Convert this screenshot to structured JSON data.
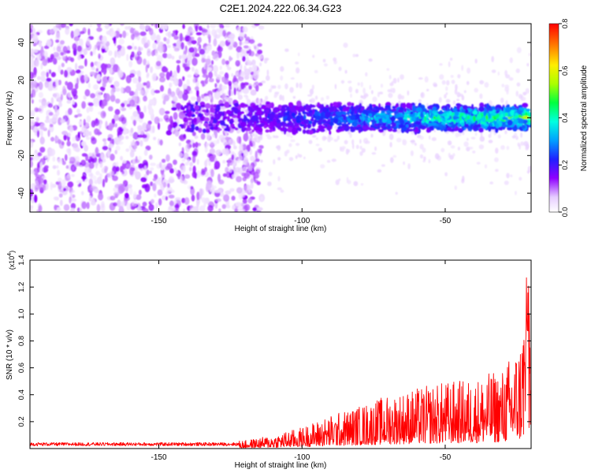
{
  "title": "C2E1.2024.222.06.34.G23",
  "chart_data": [
    {
      "type": "heatmap",
      "xlabel": "Height of straight line (km)",
      "ylabel": "Frequency (Hz)",
      "xlim": [
        -195,
        -20
      ],
      "ylim": [
        -50,
        50
      ],
      "x_ticks": [
        -150,
        -100,
        -50
      ],
      "x_tick_labels": [
        "-150",
        "-100",
        "-50"
      ],
      "y_ticks": [
        -40,
        -20,
        0,
        20,
        40
      ],
      "y_tick_labels": [
        "-40",
        "-20",
        "0",
        "20",
        "40"
      ],
      "colorbar": {
        "label": "Normalized spectral amplitude",
        "range": [
          0,
          0.8
        ],
        "ticks": [
          0,
          0.2,
          0.4,
          0.6,
          0.8
        ],
        "tick_labels": [
          "0.0",
          "0.2",
          "0.4",
          "0.6",
          "0.8"
        ],
        "colormap": "rainbow (white/violet to red)"
      },
      "features": [
        {
          "region": "noise",
          "x_range": [
            -195,
            -120
          ],
          "y_range": [
            -50,
            50
          ],
          "amplitude": 0.08
        },
        {
          "region": "signal band",
          "x_range": [
            -145,
            -20
          ],
          "center_frequency_hz": 0,
          "width_hz": 14,
          "amplitude_range": [
            0.1,
            0.5
          ]
        }
      ]
    },
    {
      "type": "line",
      "xlabel": "Height of straight line (km)",
      "ylabel": "SNR (10 * v/v)",
      "y_scale_label": "(x10",
      "y_scale_exponent": "4",
      "xlim": [
        -195,
        -20
      ],
      "ylim": [
        0,
        1.4
      ],
      "x_ticks": [
        -150,
        -100,
        -50
      ],
      "x_tick_labels": [
        "-150",
        "-100",
        "-50"
      ],
      "y_ticks": [
        0.2,
        0.4,
        0.6,
        0.8,
        1.0,
        1.2,
        1.4
      ],
      "y_tick_labels": [
        "0.2",
        "0.4",
        "0.6",
        "0.8",
        "1.0",
        "1.2",
        "1.4"
      ],
      "series": [
        {
          "color": "#ff0000",
          "envelope_x": [
            -195,
            -150,
            -120,
            -110,
            -100,
            -90,
            -80,
            -70,
            -60,
            -50,
            -40,
            -30,
            -24,
            -21,
            -20
          ],
          "envelope_y": [
            0.05,
            0.05,
            0.06,
            0.1,
            0.16,
            0.25,
            0.32,
            0.4,
            0.45,
            0.5,
            0.52,
            0.6,
            0.8,
            1.4,
            0.4
          ]
        }
      ]
    }
  ]
}
